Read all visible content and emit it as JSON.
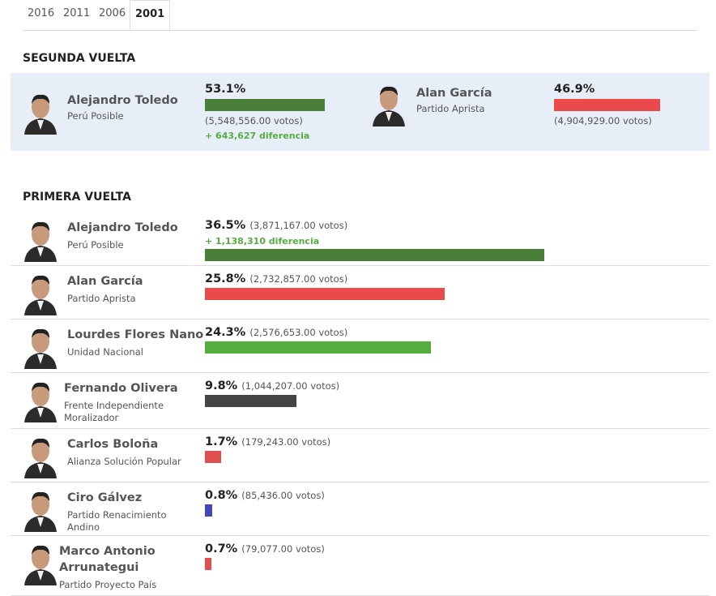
{
  "tabs": [
    "2016",
    "2011",
    "2006",
    "2001"
  ],
  "active_tab": 3,
  "second_round": {
    "title": "SEGUNDA VUELTA",
    "candidates": [
      {
        "name": "Alejandro Toledo",
        "party": "Perú Posible",
        "percent": 53.1,
        "percent_label": "53.1%",
        "votes": "(5,548,556.00 votos)",
        "difference": "+ 643,627 diferencia",
        "color": "#4a7f3a"
      },
      {
        "name": "Alan García",
        "party": "Partido Aprista",
        "percent": 46.9,
        "percent_label": "46.9%",
        "votes": "(4,904,929.00 votos)",
        "color": "#ea4a4a"
      }
    ]
  },
  "first_round": {
    "title": "PRIMERA VUELTA",
    "candidates": [
      {
        "name": "Alejandro Toledo",
        "party": "Perú Posible",
        "percent": 36.5,
        "percent_label": "36.5%",
        "votes": "(3,871,167.00 votos)",
        "difference": "+ 1,138,310 diferencia",
        "color": "#4a7f3a"
      },
      {
        "name": "Alan García",
        "party": "Partido Aprista",
        "percent": 25.8,
        "percent_label": "25.8%",
        "votes": "(2,732,857.00 votos)",
        "color": "#ea4a4a"
      },
      {
        "name": "Lourdes Flores Nano",
        "party": "Unidad Nacional",
        "percent": 24.3,
        "percent_label": "24.3%",
        "votes": "(2,576,653.00 votos)",
        "color": "#55ad3e"
      },
      {
        "name": "Fernando Olivera",
        "party": "Frente Independiente Moralizador",
        "percent": 9.8,
        "percent_label": "9.8%",
        "votes": "(1,044,207.00 votos)",
        "color": "#444444"
      },
      {
        "name": "Carlos Boloña",
        "party": "Alianza Solución Popular",
        "percent": 1.7,
        "percent_label": "1.7%",
        "votes": "(179,243.00 votos)",
        "color": "#e05050"
      },
      {
        "name": "Ciro Gálvez",
        "party": "Partido Renacimiento Andino",
        "percent": 0.8,
        "percent_label": "0.8%",
        "votes": "(85,436.00 votos)",
        "color": "#4646bb"
      },
      {
        "name": "Marco Antonio Arrunategui",
        "party": "Partido Proyecto País",
        "percent": 0.7,
        "percent_label": "0.7%",
        "votes": "(79,077.00 votos)",
        "color": "#e05050"
      }
    ]
  }
}
